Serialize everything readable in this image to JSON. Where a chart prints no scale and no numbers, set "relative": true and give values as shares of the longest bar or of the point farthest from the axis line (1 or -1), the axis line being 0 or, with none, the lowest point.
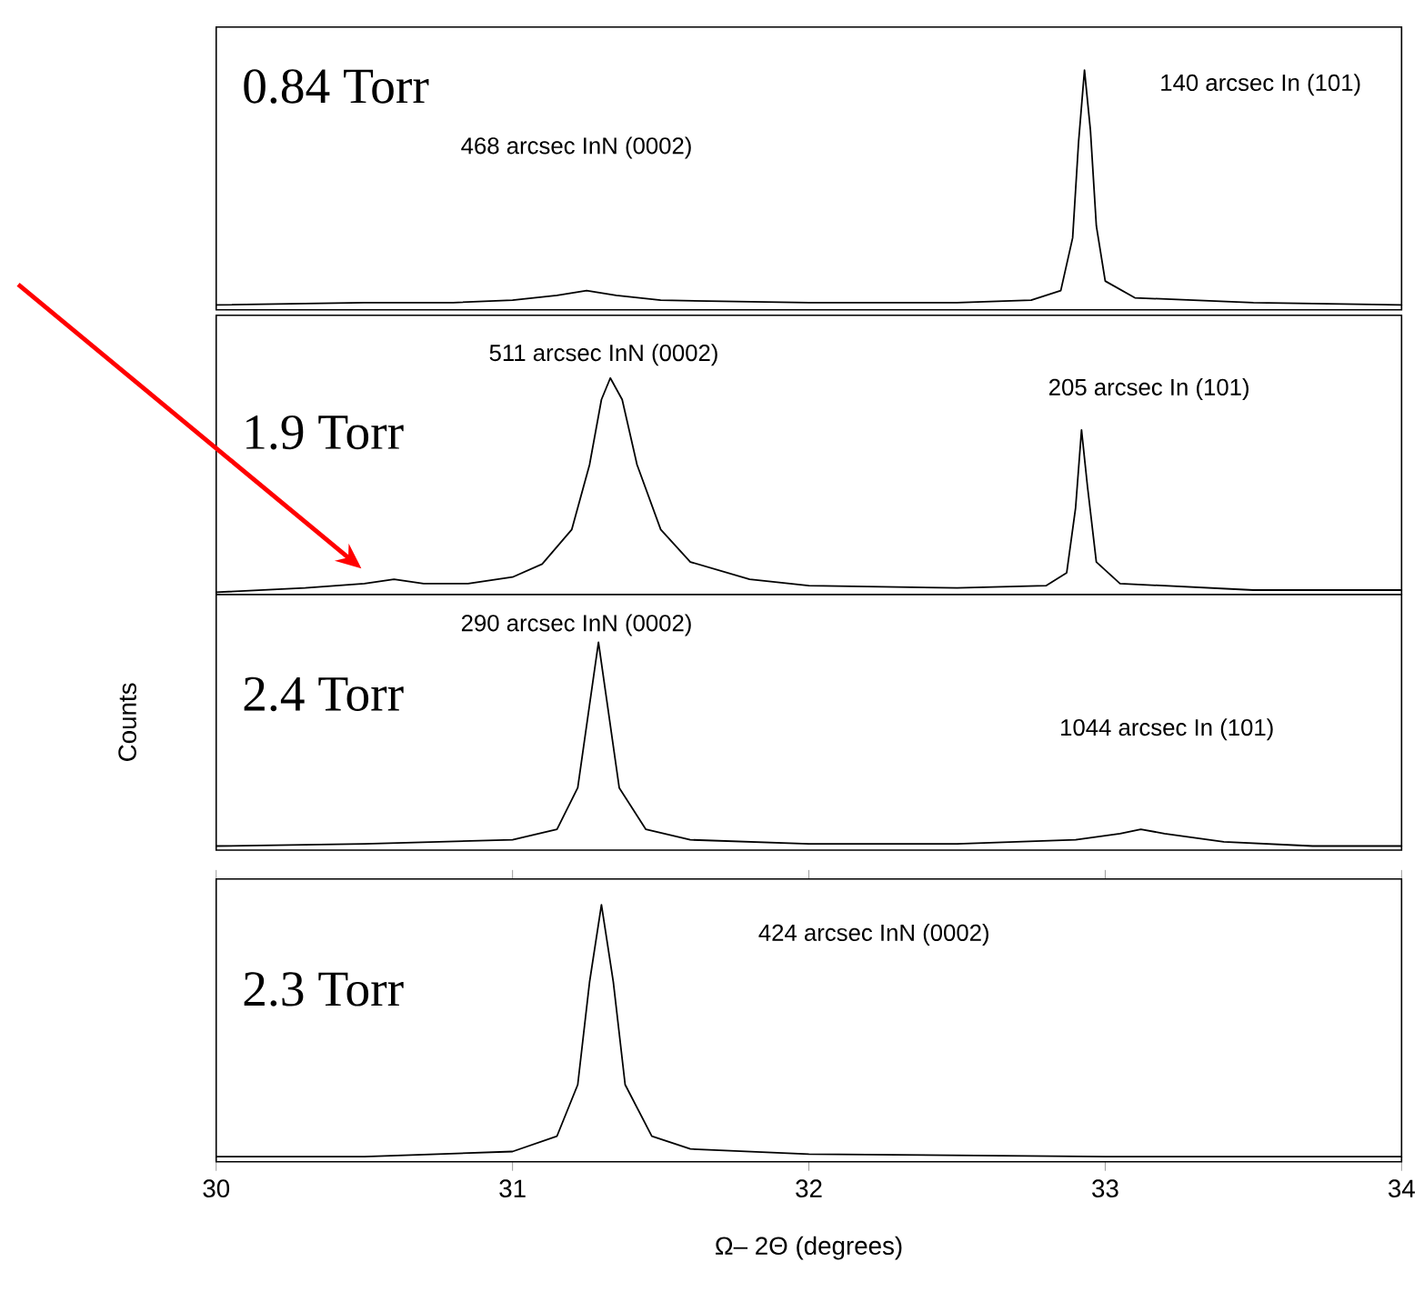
{
  "chart_data": [
    {
      "type": "line",
      "relative": true,
      "xlim": [
        30,
        34
      ],
      "tick_labels": false,
      "x": [
        30.0,
        30.5,
        30.8,
        31.0,
        31.15,
        31.25,
        31.35,
        31.5,
        32.0,
        32.5,
        32.75,
        32.85,
        32.89,
        32.91,
        32.93,
        32.95,
        32.97,
        33.0,
        33.1,
        33.5,
        34.0
      ],
      "series": [
        {
          "color": "#000000",
          "values": [
            0.02,
            0.03,
            0.03,
            0.04,
            0.06,
            0.08,
            0.06,
            0.04,
            0.03,
            0.03,
            0.04,
            0.08,
            0.3,
            0.7,
            1.0,
            0.75,
            0.35,
            0.12,
            0.05,
            0.03,
            0.02
          ]
        }
      ],
      "annotations": [
        "0.84 Torr",
        "468 arcsec InN (0002)",
        "140 arcsec In (101)"
      ]
    },
    {
      "type": "line",
      "relative": true,
      "xlim": [
        30,
        34
      ],
      "tick_labels": false,
      "x": [
        30.0,
        30.3,
        30.5,
        30.6,
        30.7,
        30.85,
        31.0,
        31.1,
        31.2,
        31.26,
        31.3,
        31.33,
        31.37,
        31.42,
        31.5,
        31.6,
        31.8,
        32.0,
        32.5,
        32.8,
        32.87,
        32.9,
        32.92,
        32.94,
        32.97,
        33.05,
        33.5,
        34.0
      ],
      "series": [
        {
          "color": "#000000",
          "values": [
            0.01,
            0.03,
            0.05,
            0.07,
            0.05,
            0.05,
            0.08,
            0.14,
            0.3,
            0.6,
            0.9,
            1.0,
            0.9,
            0.6,
            0.3,
            0.15,
            0.07,
            0.04,
            0.03,
            0.04,
            0.1,
            0.4,
            0.76,
            0.5,
            0.15,
            0.05,
            0.02,
            0.02
          ]
        }
      ],
      "annotations": [
        "1.9 Torr",
        "511 arcsec InN (0002)",
        "205 arcsec In (101)"
      ]
    },
    {
      "type": "line",
      "relative": true,
      "xlim": [
        30,
        34
      ],
      "tick_labels": false,
      "ylabel": "Counts",
      "x": [
        30.0,
        30.5,
        31.0,
        31.15,
        31.22,
        31.26,
        31.29,
        31.32,
        31.36,
        31.45,
        31.6,
        32.0,
        32.5,
        32.9,
        33.05,
        33.12,
        33.2,
        33.4,
        33.7,
        34.0
      ],
      "series": [
        {
          "color": "#000000",
          "values": [
            0.02,
            0.03,
            0.05,
            0.1,
            0.3,
            0.7,
            1.0,
            0.7,
            0.3,
            0.1,
            0.05,
            0.03,
            0.03,
            0.05,
            0.08,
            0.1,
            0.08,
            0.04,
            0.02,
            0.02
          ]
        }
      ],
      "annotations": [
        "2.4 Torr",
        "290 arcsec InN (0002)",
        "1044 arcsec In (101)"
      ]
    },
    {
      "type": "line",
      "relative": true,
      "xlim": [
        30,
        34
      ],
      "xticks": [
        30,
        31,
        32,
        33,
        34
      ],
      "tick_labels": "x",
      "xlabel": "Ω– 2Θ (degrees)",
      "x": [
        30.0,
        30.5,
        31.0,
        31.15,
        31.22,
        31.26,
        31.3,
        31.34,
        31.38,
        31.47,
        31.6,
        32.0,
        33.0,
        34.0
      ],
      "series": [
        {
          "color": "#000000",
          "values": [
            0.02,
            0.02,
            0.04,
            0.1,
            0.3,
            0.7,
            1.0,
            0.7,
            0.3,
            0.1,
            0.05,
            0.03,
            0.02,
            0.02
          ]
        }
      ],
      "annotations": [
        "2.3 Torr",
        "424 arcsec InN (0002)"
      ]
    }
  ]
}
